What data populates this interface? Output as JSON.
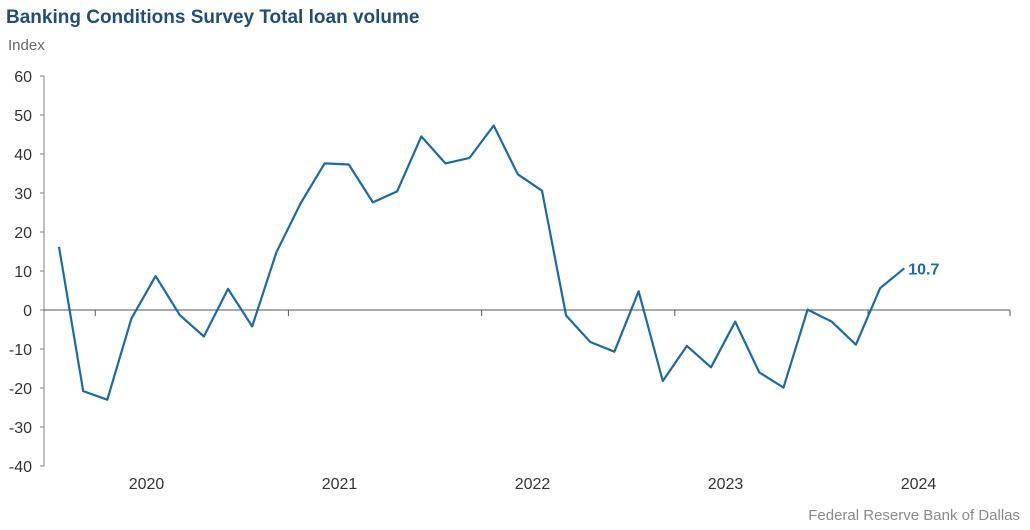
{
  "chart_data": {
    "type": "line",
    "title": "Banking Conditions Survey Total loan volume",
    "ylabel": "Index",
    "xlabel": "",
    "ylim": [
      -40,
      60
    ],
    "yticks": [
      60,
      50,
      40,
      30,
      20,
      10,
      0,
      -10,
      -20,
      -30,
      -40
    ],
    "xtick_labels": [
      "2020",
      "2021",
      "2022",
      "2023",
      "2024"
    ],
    "grid": false,
    "series": [
      {
        "color": "#1b6aa5",
        "values": [
          16.2,
          -20.8,
          -23.0,
          -2.2,
          8.7,
          -1.3,
          -6.8,
          5.4,
          -4.2,
          14.8,
          27.3,
          37.6,
          37.3,
          27.6,
          30.4,
          44.5,
          37.6,
          39.0,
          47.3,
          34.8,
          30.6,
          -1.4,
          -8.2,
          -10.7,
          4.8,
          -18.2,
          -9.2,
          -14.7,
          -3.0,
          -16.0,
          -19.9,
          0.1,
          -3.0,
          -8.9,
          5.6,
          10.7
        ]
      }
    ],
    "end_label": "10.7",
    "end_label_color": "#1b6aa5",
    "source": "Federal Reserve Bank of Dallas"
  }
}
